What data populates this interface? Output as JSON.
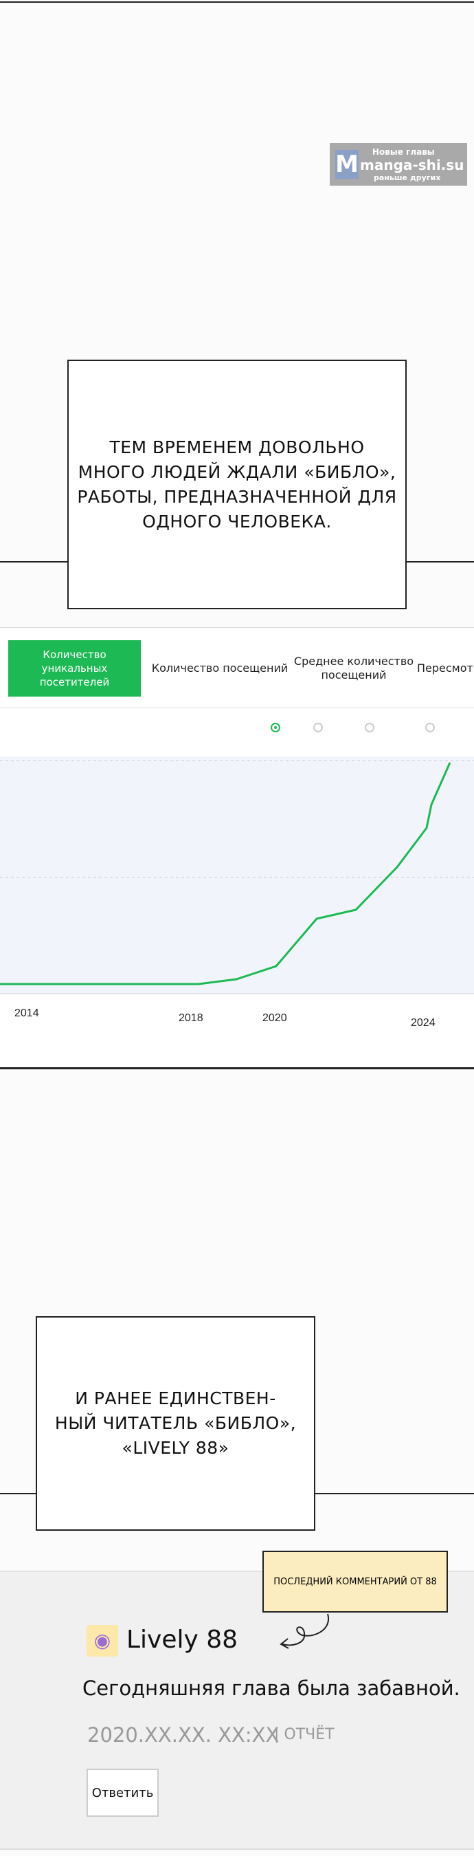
{
  "watermark": {
    "line1": "Новые главы",
    "brand": "manga-shi.su",
    "line2": "раньше других"
  },
  "panel1": {
    "caption": [
      "Тем временем довольно",
      "много людей ждали «Библо»,",
      "работы, предназначенной для",
      "одного человека."
    ]
  },
  "stats": {
    "tabs": [
      "Количество уникальных посетителей",
      "Количество посещений",
      "Среднее количество посещений",
      "Пересмотр"
    ],
    "years": [
      "2014",
      "2018",
      "2020",
      "2024"
    ]
  },
  "panel2": {
    "caption": [
      "И ранее единствен-",
      "ный читатель «Библо»,",
      "«Lively 88»"
    ]
  },
  "comment": {
    "tag": "Последний комментарий от 88",
    "user": "Lively 88",
    "text": "Сегодняшняя глава была забавной.",
    "date": "2020.XX.XX. XX:XX",
    "report": "| отчёт",
    "reply": "Ответить"
  }
}
